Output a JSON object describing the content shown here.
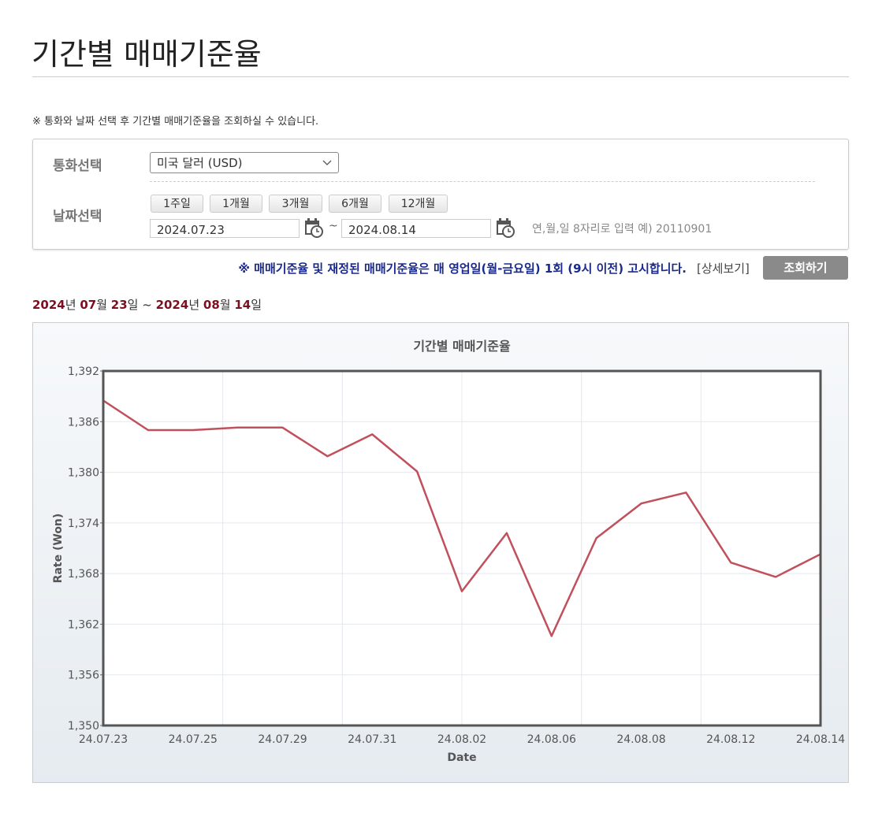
{
  "header": {
    "title": "기간별 매매기준율"
  },
  "notice": "※ 통화와 날짜 선택 후 기간별 매매기준율을 조회하실 수 있습니다.",
  "form": {
    "currency_label": "통화선택",
    "currency_value": "미국 달러 (USD)",
    "date_label": "날짜선택",
    "period_buttons": [
      "1주일",
      "1개월",
      "3개월",
      "6개월",
      "12개월"
    ],
    "start_date": "2024.07.23",
    "tilde": "~",
    "end_date": "2024.08.14",
    "date_hint": "연,월,일 8자리로 입력 예) 20110901"
  },
  "announcement": "※ 매매기준율 및 재정된 매매기준율은 매 영업일(월-금요일) 1회 (9시 이전) 고시합니다.",
  "detail_link": "[상세보기]",
  "search_button": "조회하기",
  "range_text": [
    "2024",
    "년 ",
    "07",
    "월 ",
    "23",
    "일 ~ ",
    "2024",
    "년 ",
    "08",
    "월 ",
    "14",
    "일"
  ],
  "chart_data": {
    "type": "line",
    "title": "기간별 매매기준율",
    "x_label": "Date",
    "y_label": "Rate (Won)",
    "categories": [
      "24.07.23",
      null,
      "24.07.25",
      null,
      "24.07.29",
      null,
      "24.07.31",
      null,
      "24.08.02",
      null,
      "24.08.06",
      null,
      "24.08.08",
      null,
      "24.08.12",
      null,
      "24.08.14"
    ],
    "series": [
      {
        "name": "매매기준율",
        "color": "#c0505c",
        "values": [
          1388.5,
          1385.0,
          1385.0,
          1385.3,
          1385.3,
          1381.9,
          1384.5,
          1380.1,
          1365.9,
          1372.8,
          1360.6,
          1372.2,
          1376.3,
          1377.6,
          1369.3,
          1367.6,
          1370.3
        ]
      }
    ],
    "ylim": [
      1350,
      1392
    ],
    "yticks": [
      {
        "value": 1350,
        "label": "1,350"
      },
      {
        "value": 1356,
        "label": "1,356"
      },
      {
        "value": 1362,
        "label": "1,362"
      },
      {
        "value": 1368,
        "label": "1,368"
      },
      {
        "value": 1374,
        "label": "1,374"
      },
      {
        "value": 1380,
        "label": "1,380"
      },
      {
        "value": 1386,
        "label": "1,386"
      },
      {
        "value": 1392,
        "label": "1,392"
      }
    ],
    "grid": true
  }
}
